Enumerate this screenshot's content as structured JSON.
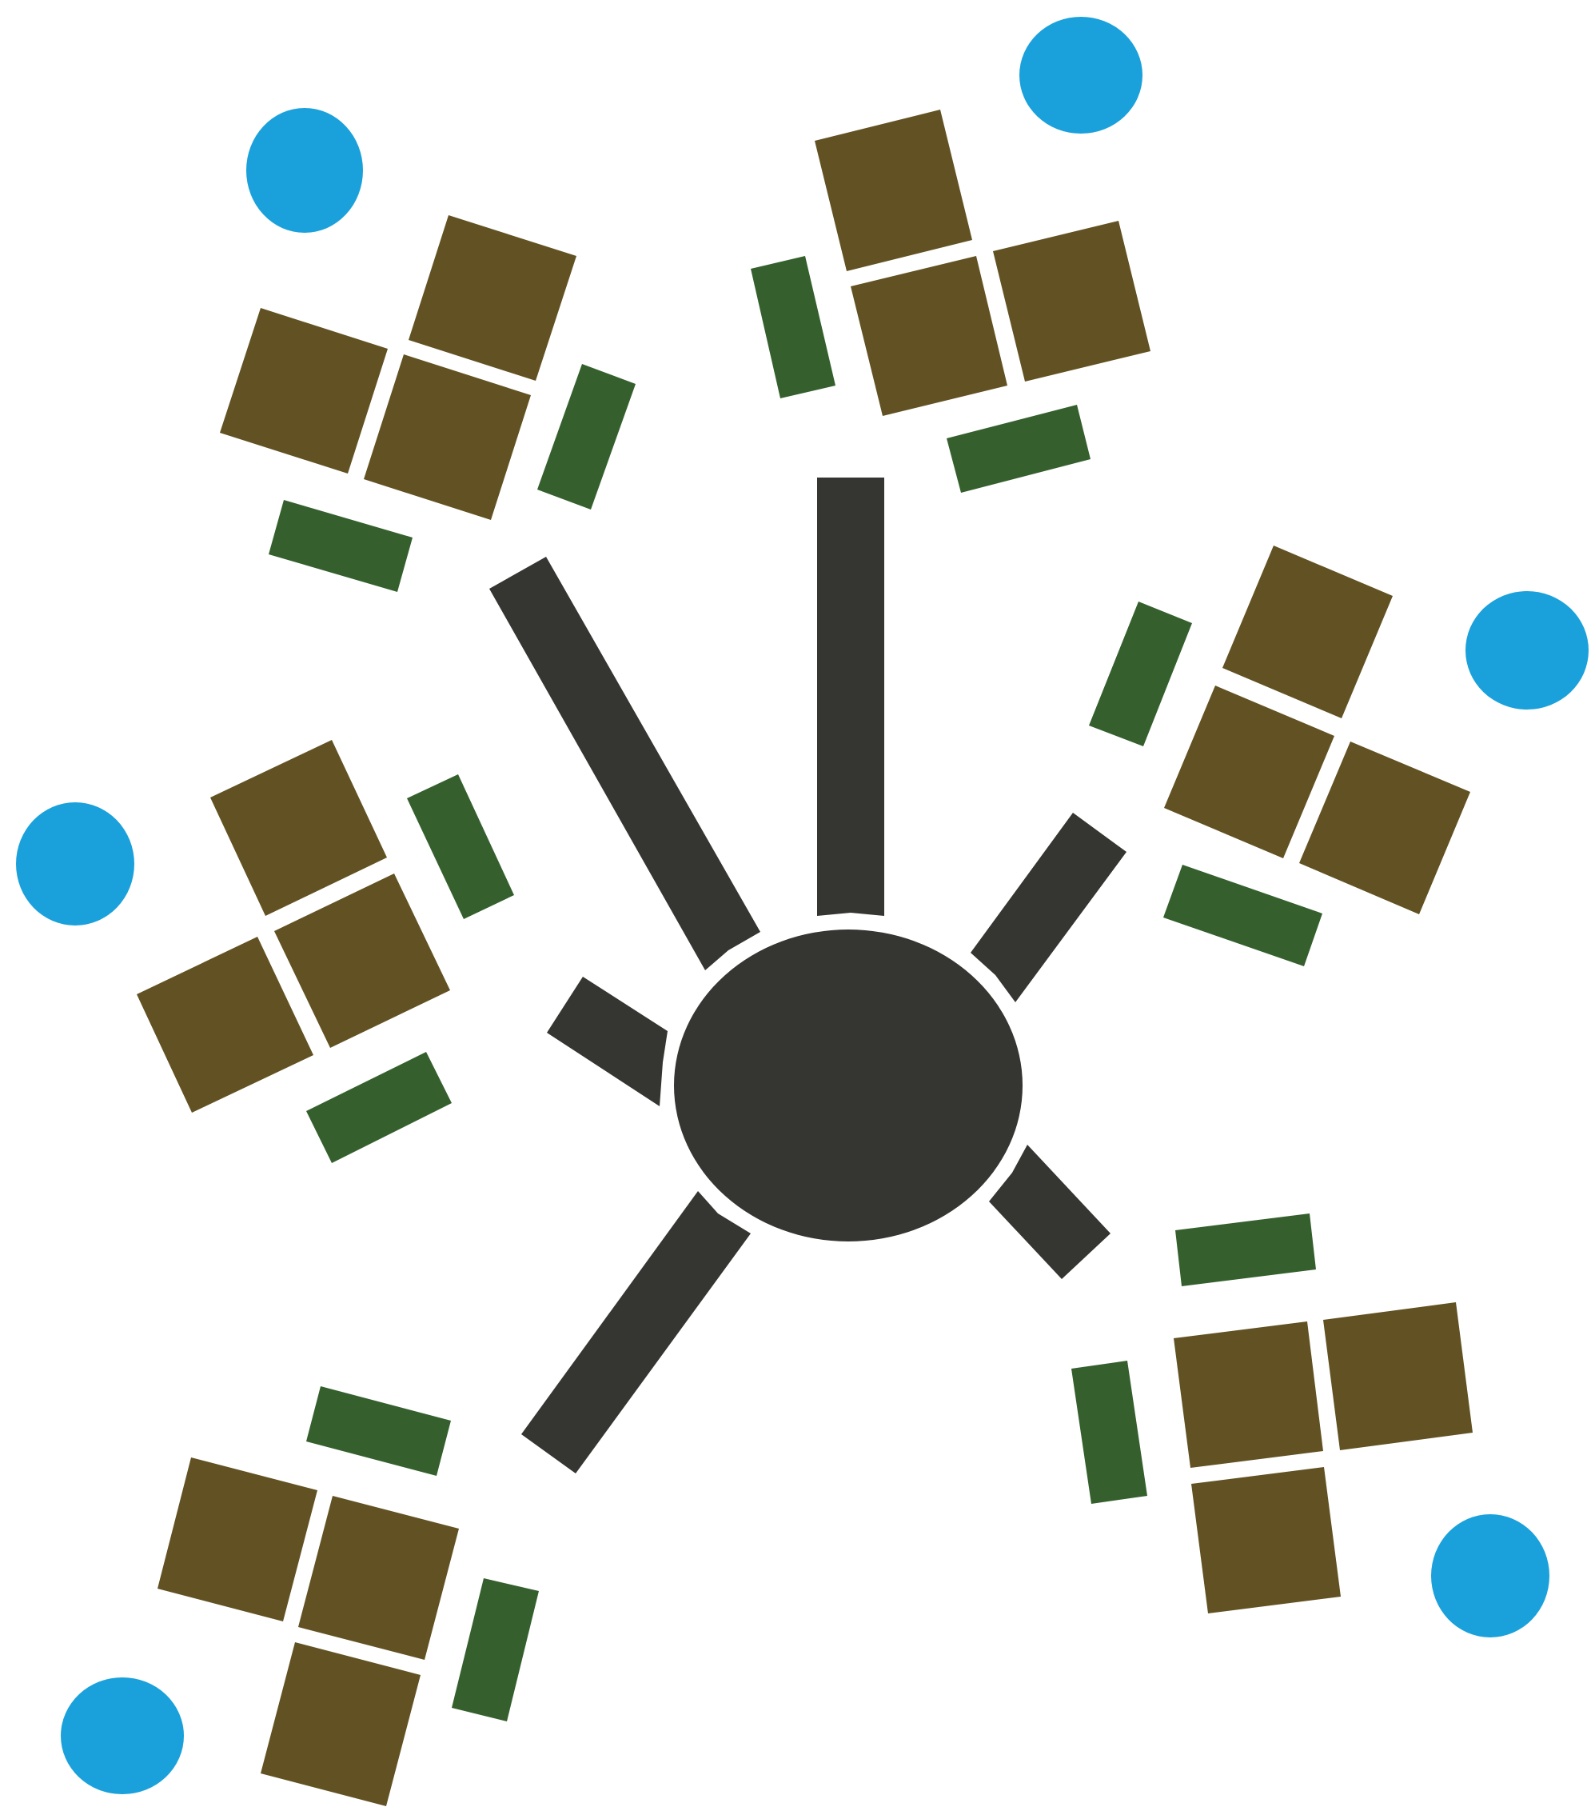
{
  "colors": {
    "hub": "#353631",
    "connector": "#353631",
    "tile": "#625223",
    "bar": "#35602e",
    "dot": "#1aa1db",
    "background": "#ffffff"
  },
  "diagram": {
    "hub": {
      "icon": "hub-ellipse"
    },
    "connectors": [
      {
        "id": "north"
      },
      {
        "id": "north-west"
      },
      {
        "id": "north-east"
      },
      {
        "id": "west-short"
      },
      {
        "id": "south-west"
      },
      {
        "id": "south-east-short"
      }
    ],
    "clusters": [
      {
        "id": "top-left",
        "tiles": 3,
        "bars": 2,
        "dots": 1
      },
      {
        "id": "top-center",
        "tiles": 3,
        "bars": 2,
        "dots": 1
      },
      {
        "id": "right",
        "tiles": 3,
        "bars": 2,
        "dots": 1
      },
      {
        "id": "left",
        "tiles": 3,
        "bars": 2,
        "dots": 1
      },
      {
        "id": "bottom-right",
        "tiles": 3,
        "bars": 2,
        "dots": 1
      },
      {
        "id": "bottom-left",
        "tiles": 3,
        "bars": 2,
        "dots": 1
      }
    ]
  }
}
